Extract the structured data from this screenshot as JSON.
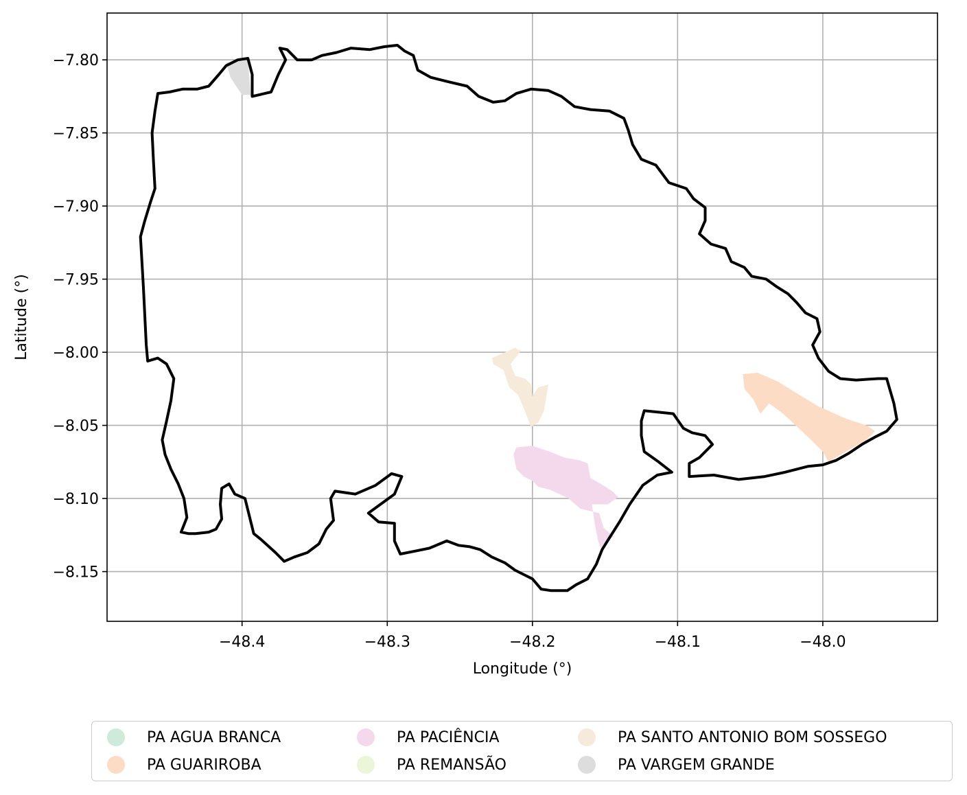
{
  "axes": {
    "xlabel": "Longitude (°)",
    "ylabel": "Latitude (°)",
    "xlim": [
      -48.493,
      -47.921
    ],
    "ylim": [
      -8.184,
      -7.768
    ],
    "xticks": [
      -48.4,
      -48.3,
      -48.2,
      -48.1,
      -48.0
    ],
    "xtick_labels": [
      "−48.4",
      "−48.3",
      "−48.2",
      "−48.1",
      "−48.0"
    ],
    "yticks": [
      -7.8,
      -7.85,
      -7.9,
      -7.95,
      -8.0,
      -8.05,
      -8.1,
      -8.15
    ],
    "ytick_labels": [
      "−7.80",
      "−7.85",
      "−7.90",
      "−7.95",
      "−8.00",
      "−8.05",
      "−8.10",
      "−8.15"
    ],
    "grid": true
  },
  "legend": {
    "placement": "below plot, 3 columns",
    "items": [
      {
        "label": "PA AGUA BRANCA",
        "color": "#cdeadb"
      },
      {
        "label": "PA GUARIROBA",
        "color": "#fddcc6"
      },
      {
        "label": "PA PACIÊNCIA",
        "color": "#f4d9ec"
      },
      {
        "label": "PA REMANSÃO",
        "color": "#ebf6d9"
      },
      {
        "label": "PA SANTO ANTONIO BOM SOSSEGO",
        "color": "#f6eadb"
      },
      {
        "label": "PA VARGEM GRANDE",
        "color": "#dddddd"
      }
    ]
  },
  "chart_data": {
    "type": "map",
    "boundary": {
      "color": "#000000",
      "coords": [
        [
          -48.374,
          -7.792
        ],
        [
          -48.369,
          -7.793
        ],
        [
          -48.362,
          -7.8
        ],
        [
          -48.352,
          -7.8
        ],
        [
          -48.345,
          -7.797
        ],
        [
          -48.335,
          -7.795
        ],
        [
          -48.325,
          -7.792
        ],
        [
          -48.312,
          -7.793
        ],
        [
          -48.302,
          -7.791
        ],
        [
          -48.293,
          -7.79
        ],
        [
          -48.288,
          -7.794
        ],
        [
          -48.282,
          -7.797
        ],
        [
          -48.279,
          -7.807
        ],
        [
          -48.27,
          -7.812
        ],
        [
          -48.258,
          -7.815
        ],
        [
          -48.245,
          -7.818
        ],
        [
          -48.237,
          -7.825
        ],
        [
          -48.227,
          -7.829
        ],
        [
          -48.219,
          -7.828
        ],
        [
          -48.211,
          -7.823
        ],
        [
          -48.201,
          -7.82
        ],
        [
          -48.189,
          -7.821
        ],
        [
          -48.18,
          -7.825
        ],
        [
          -48.171,
          -7.832
        ],
        [
          -48.16,
          -7.834
        ],
        [
          -48.147,
          -7.835
        ],
        [
          -48.137,
          -7.84
        ],
        [
          -48.134,
          -7.848
        ],
        [
          -48.131,
          -7.858
        ],
        [
          -48.125,
          -7.868
        ],
        [
          -48.115,
          -7.872
        ],
        [
          -48.106,
          -7.884
        ],
        [
          -48.094,
          -7.888
        ],
        [
          -48.089,
          -7.895
        ],
        [
          -48.081,
          -7.901
        ],
        [
          -48.081,
          -7.91
        ],
        [
          -48.085,
          -7.919
        ],
        [
          -48.077,
          -7.926
        ],
        [
          -48.067,
          -7.929
        ],
        [
          -48.063,
          -7.938
        ],
        [
          -48.054,
          -7.942
        ],
        [
          -48.049,
          -7.948
        ],
        [
          -48.039,
          -7.95
        ],
        [
          -48.032,
          -7.955
        ],
        [
          -48.024,
          -7.96
        ],
        [
          -48.018,
          -7.966
        ],
        [
          -48.012,
          -7.973
        ],
        [
          -48.004,
          -7.977
        ],
        [
          -48.002,
          -7.986
        ],
        [
          -48.007,
          -7.995
        ],
        [
          -48.003,
          -8.004
        ],
        [
          -47.996,
          -8.013
        ],
        [
          -47.988,
          -8.018
        ],
        [
          -47.977,
          -8.019
        ],
        [
          -47.962,
          -8.018
        ],
        [
          -47.956,
          -8.018
        ],
        [
          -47.951,
          -8.035
        ],
        [
          -47.949,
          -8.046
        ],
        [
          -47.956,
          -8.054
        ],
        [
          -47.964,
          -8.058
        ],
        [
          -47.973,
          -8.063
        ],
        [
          -47.982,
          -8.069
        ],
        [
          -47.991,
          -8.074
        ],
        [
          -48.0,
          -8.077
        ],
        [
          -48.01,
          -8.078
        ],
        [
          -48.026,
          -8.082
        ],
        [
          -48.04,
          -8.085
        ],
        [
          -48.058,
          -8.087
        ],
        [
          -48.075,
          -8.084
        ],
        [
          -48.092,
          -8.085
        ],
        [
          -48.092,
          -8.076
        ],
        [
          -48.085,
          -8.072
        ],
        [
          -48.076,
          -8.063
        ],
        [
          -48.081,
          -8.057
        ],
        [
          -48.09,
          -8.055
        ],
        [
          -48.096,
          -8.052
        ],
        [
          -48.103,
          -8.042
        ],
        [
          -48.113,
          -8.041
        ],
        [
          -48.123,
          -8.04
        ],
        [
          -48.125,
          -8.047
        ],
        [
          -48.125,
          -8.057
        ],
        [
          -48.123,
          -8.068
        ],
        [
          -48.113,
          -8.075
        ],
        [
          -48.104,
          -8.082
        ],
        [
          -48.114,
          -8.084
        ],
        [
          -48.124,
          -8.091
        ],
        [
          -48.133,
          -8.104
        ],
        [
          -48.14,
          -8.116
        ],
        [
          -48.147,
          -8.127
        ],
        [
          -48.152,
          -8.135
        ],
        [
          -48.156,
          -8.145
        ],
        [
          -48.162,
          -8.155
        ],
        [
          -48.17,
          -8.159
        ],
        [
          -48.176,
          -8.163
        ],
        [
          -48.187,
          -8.163
        ],
        [
          -48.194,
          -8.162
        ],
        [
          -48.2,
          -8.155
        ],
        [
          -48.212,
          -8.149
        ],
        [
          -48.219,
          -8.144
        ],
        [
          -48.228,
          -8.14
        ],
        [
          -48.236,
          -8.135
        ],
        [
          -48.243,
          -8.133
        ],
        [
          -48.251,
          -8.132
        ],
        [
          -48.259,
          -8.129
        ],
        [
          -48.271,
          -8.134
        ],
        [
          -48.281,
          -8.136
        ],
        [
          -48.291,
          -8.138
        ],
        [
          -48.295,
          -8.129
        ],
        [
          -48.295,
          -8.117
        ],
        [
          -48.306,
          -8.116
        ],
        [
          -48.313,
          -8.11
        ],
        [
          -48.295,
          -8.097
        ],
        [
          -48.29,
          -8.085
        ],
        [
          -48.297,
          -8.083
        ],
        [
          -48.308,
          -8.091
        ],
        [
          -48.322,
          -8.097
        ],
        [
          -48.336,
          -8.095
        ],
        [
          -48.339,
          -8.1
        ],
        [
          -48.337,
          -8.115
        ],
        [
          -48.342,
          -8.121
        ],
        [
          -48.347,
          -8.131
        ],
        [
          -48.355,
          -8.137
        ],
        [
          -48.364,
          -8.14
        ],
        [
          -48.371,
          -8.143
        ],
        [
          -48.377,
          -8.137
        ],
        [
          -48.387,
          -8.128
        ],
        [
          -48.392,
          -8.124
        ],
        [
          -48.398,
          -8.1
        ],
        [
          -48.405,
          -8.097
        ],
        [
          -48.409,
          -8.09
        ],
        [
          -48.414,
          -8.093
        ],
        [
          -48.415,
          -8.104
        ],
        [
          -48.414,
          -8.114
        ],
        [
          -48.418,
          -8.121
        ],
        [
          -48.423,
          -8.123
        ],
        [
          -48.432,
          -8.124
        ],
        [
          -48.437,
          -8.124
        ],
        [
          -48.442,
          -8.123
        ],
        [
          -48.438,
          -8.113
        ],
        [
          -48.44,
          -8.1
        ],
        [
          -48.444,
          -8.09
        ],
        [
          -48.449,
          -8.08
        ],
        [
          -48.453,
          -8.07
        ],
        [
          -48.455,
          -8.06
        ],
        [
          -48.452,
          -8.047
        ],
        [
          -48.449,
          -8.033
        ],
        [
          -48.447,
          -8.018
        ],
        [
          -48.452,
          -8.008
        ],
        [
          -48.458,
          -8.004
        ],
        [
          -48.465,
          -8.006
        ],
        [
          -48.466,
          -7.995
        ],
        [
          -48.467,
          -7.975
        ],
        [
          -48.468,
          -7.955
        ],
        [
          -48.469,
          -7.938
        ],
        [
          -48.47,
          -7.921
        ],
        [
          -48.467,
          -7.91
        ],
        [
          -48.463,
          -7.897
        ],
        [
          -48.46,
          -7.888
        ],
        [
          -48.461,
          -7.87
        ],
        [
          -48.462,
          -7.85
        ],
        [
          -48.46,
          -7.835
        ],
        [
          -48.458,
          -7.823
        ],
        [
          -48.45,
          -7.822
        ],
        [
          -48.441,
          -7.82
        ],
        [
          -48.431,
          -7.82
        ],
        [
          -48.423,
          -7.818
        ],
        [
          -48.416,
          -7.81
        ],
        [
          -48.411,
          -7.804
        ],
        [
          -48.403,
          -7.8
        ],
        [
          -48.396,
          -7.799
        ],
        [
          -48.393,
          -7.81
        ],
        [
          -48.393,
          -7.825
        ],
        [
          -48.38,
          -7.822
        ],
        [
          -48.375,
          -7.81
        ],
        [
          -48.37,
          -7.8
        ],
        [
          -48.374,
          -7.792
        ]
      ]
    },
    "areas": [
      {
        "name": "PA VARGEM GRANDE",
        "color": "#dddddd",
        "coords": [
          [
            -48.411,
            -7.802
          ],
          [
            -48.396,
            -7.799
          ],
          [
            -48.394,
            -7.824
          ],
          [
            -48.4,
            -7.824
          ],
          [
            -48.408,
            -7.812
          ]
        ]
      },
      {
        "name": "PA SANTO ANTONIO BOM SOSSEGO",
        "color": "#f6eadb",
        "coords": [
          [
            -48.228,
            -8.004
          ],
          [
            -48.221,
            -8.001
          ],
          [
            -48.212,
            -7.997
          ],
          [
            -48.208,
            -7.999
          ],
          [
            -48.215,
            -8.008
          ],
          [
            -48.212,
            -8.016
          ],
          [
            -48.205,
            -8.018
          ],
          [
            -48.201,
            -8.022
          ],
          [
            -48.2,
            -8.03
          ],
          [
            -48.196,
            -8.024
          ],
          [
            -48.189,
            -8.022
          ],
          [
            -48.192,
            -8.04
          ],
          [
            -48.196,
            -8.048
          ],
          [
            -48.201,
            -8.051
          ],
          [
            -48.206,
            -8.038
          ],
          [
            -48.21,
            -8.029
          ],
          [
            -48.216,
            -8.024
          ],
          [
            -48.22,
            -8.012
          ],
          [
            -48.227,
            -8.008
          ]
        ]
      },
      {
        "name": "PA GUARIROBA",
        "color": "#fddcc6",
        "coords": [
          [
            -48.055,
            -8.015
          ],
          [
            -48.045,
            -8.014
          ],
          [
            -48.031,
            -8.02
          ],
          [
            -48.018,
            -8.028
          ],
          [
            -48.003,
            -8.037
          ],
          [
            -47.985,
            -8.045
          ],
          [
            -47.97,
            -8.05
          ],
          [
            -47.964,
            -8.054
          ],
          [
            -47.97,
            -8.06
          ],
          [
            -47.984,
            -8.068
          ],
          [
            -47.996,
            -8.075
          ],
          [
            -48.0,
            -8.068
          ],
          [
            -48.008,
            -8.06
          ],
          [
            -48.024,
            -8.045
          ],
          [
            -48.03,
            -8.04
          ],
          [
            -48.037,
            -8.035
          ],
          [
            -48.043,
            -8.042
          ],
          [
            -48.048,
            -8.032
          ],
          [
            -48.054,
            -8.025
          ]
        ]
      },
      {
        "name": "PA PACIÊNCIA",
        "color": "#f4d9ec",
        "coords": [
          [
            -48.211,
            -8.065
          ],
          [
            -48.2,
            -8.064
          ],
          [
            -48.188,
            -8.068
          ],
          [
            -48.178,
            -8.072
          ],
          [
            -48.167,
            -8.074
          ],
          [
            -48.162,
            -8.076
          ],
          [
            -48.16,
            -8.086
          ],
          [
            -48.153,
            -8.09
          ],
          [
            -48.145,
            -8.095
          ],
          [
            -48.141,
            -8.099
          ],
          [
            -48.148,
            -8.104
          ],
          [
            -48.159,
            -8.104
          ],
          [
            -48.157,
            -8.118
          ],
          [
            -48.155,
            -8.128
          ],
          [
            -48.153,
            -8.134
          ],
          [
            -48.15,
            -8.13
          ],
          [
            -48.144,
            -8.126
          ],
          [
            -48.151,
            -8.12
          ],
          [
            -48.154,
            -8.11
          ],
          [
            -48.167,
            -8.107
          ],
          [
            -48.175,
            -8.1
          ],
          [
            -48.188,
            -8.094
          ],
          [
            -48.196,
            -8.092
          ],
          [
            -48.2,
            -8.088
          ],
          [
            -48.206,
            -8.085
          ],
          [
            -48.211,
            -8.08
          ],
          [
            -48.213,
            -8.07
          ]
        ]
      },
      {
        "name": "PA AGUA BRANCA",
        "color": "#cdeadb",
        "coords": []
      },
      {
        "name": "PA REMANSÃO",
        "color": "#ebf6d9",
        "coords": []
      }
    ]
  }
}
